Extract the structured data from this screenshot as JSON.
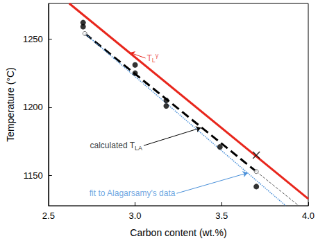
{
  "chart_data": {
    "type": "scatter",
    "xlabel": "Carbon content (wt.%)",
    "ylabel": "Temperature (°C)",
    "xlim": [
      2.5,
      4.0
    ],
    "xticks": [
      2.5,
      {
        "value": 3,
        "label": "3.0"
      },
      3.5,
      {
        "value": 4,
        "label": "4.0"
      }
    ],
    "ylim": [
      1128,
      1276
    ],
    "yticks": [
      1150,
      1200,
      1250
    ],
    "grid": false,
    "series": [
      {
        "type": "line",
        "color": "#e8261c",
        "line_style": "solid",
        "x": [
          2.62,
          4.0
        ],
        "values": [
          1276,
          1133
        ]
      },
      {
        "type": "line",
        "color": "#000000",
        "line_style": "dashed",
        "x": [
          2.71,
          3.7
        ],
        "values": [
          1254,
          1153
        ]
      },
      {
        "type": "line",
        "color": "#555555",
        "line_style": "thin_dashed",
        "x": [
          3.7,
          3.945
        ],
        "values": [
          1153,
          1128
        ]
      },
      {
        "type": "line",
        "color": "#4a90d9",
        "line_style": "dotted",
        "x": [
          2.71,
          3.87
        ],
        "values": [
          1254,
          1128
        ]
      },
      {
        "type": "scatter",
        "color": "#000000",
        "marker": "circle",
        "x": [
          2.7,
          2.7,
          3.0,
          3.0,
          3.18,
          3.18,
          3.49,
          3.7
        ],
        "values": [
          1262,
          1259,
          1231,
          1225,
          1205,
          1201,
          1171,
          1142
        ]
      },
      {
        "type": "scatter",
        "color": "#555555",
        "marker": "open_circle",
        "x": [
          2.71,
          3.7
        ],
        "values": [
          1254,
          1153
        ]
      },
      {
        "type": "scatter",
        "color": "#000000",
        "marker": "x",
        "x": [
          3.7
        ],
        "values": [
          1165
        ]
      }
    ],
    "annotations": [
      {
        "text": "T",
        "subscript": "L",
        "superscript": "γ",
        "color": "#e8261c",
        "xytext": [
          3.06,
          1236
        ],
        "xy": [
          2.97,
          1240
        ]
      },
      {
        "text": "calculated T",
        "subscript": "LA",
        "color": "#000000",
        "xytext": [
          3.05,
          1172
        ],
        "xy": [
          3.38,
          1185
        ]
      },
      {
        "text": "fit to Alagarsamy's data",
        "color": "#4a90d9",
        "xytext": [
          3.24,
          1137
        ],
        "xy": [
          3.65,
          1152
        ]
      }
    ]
  }
}
